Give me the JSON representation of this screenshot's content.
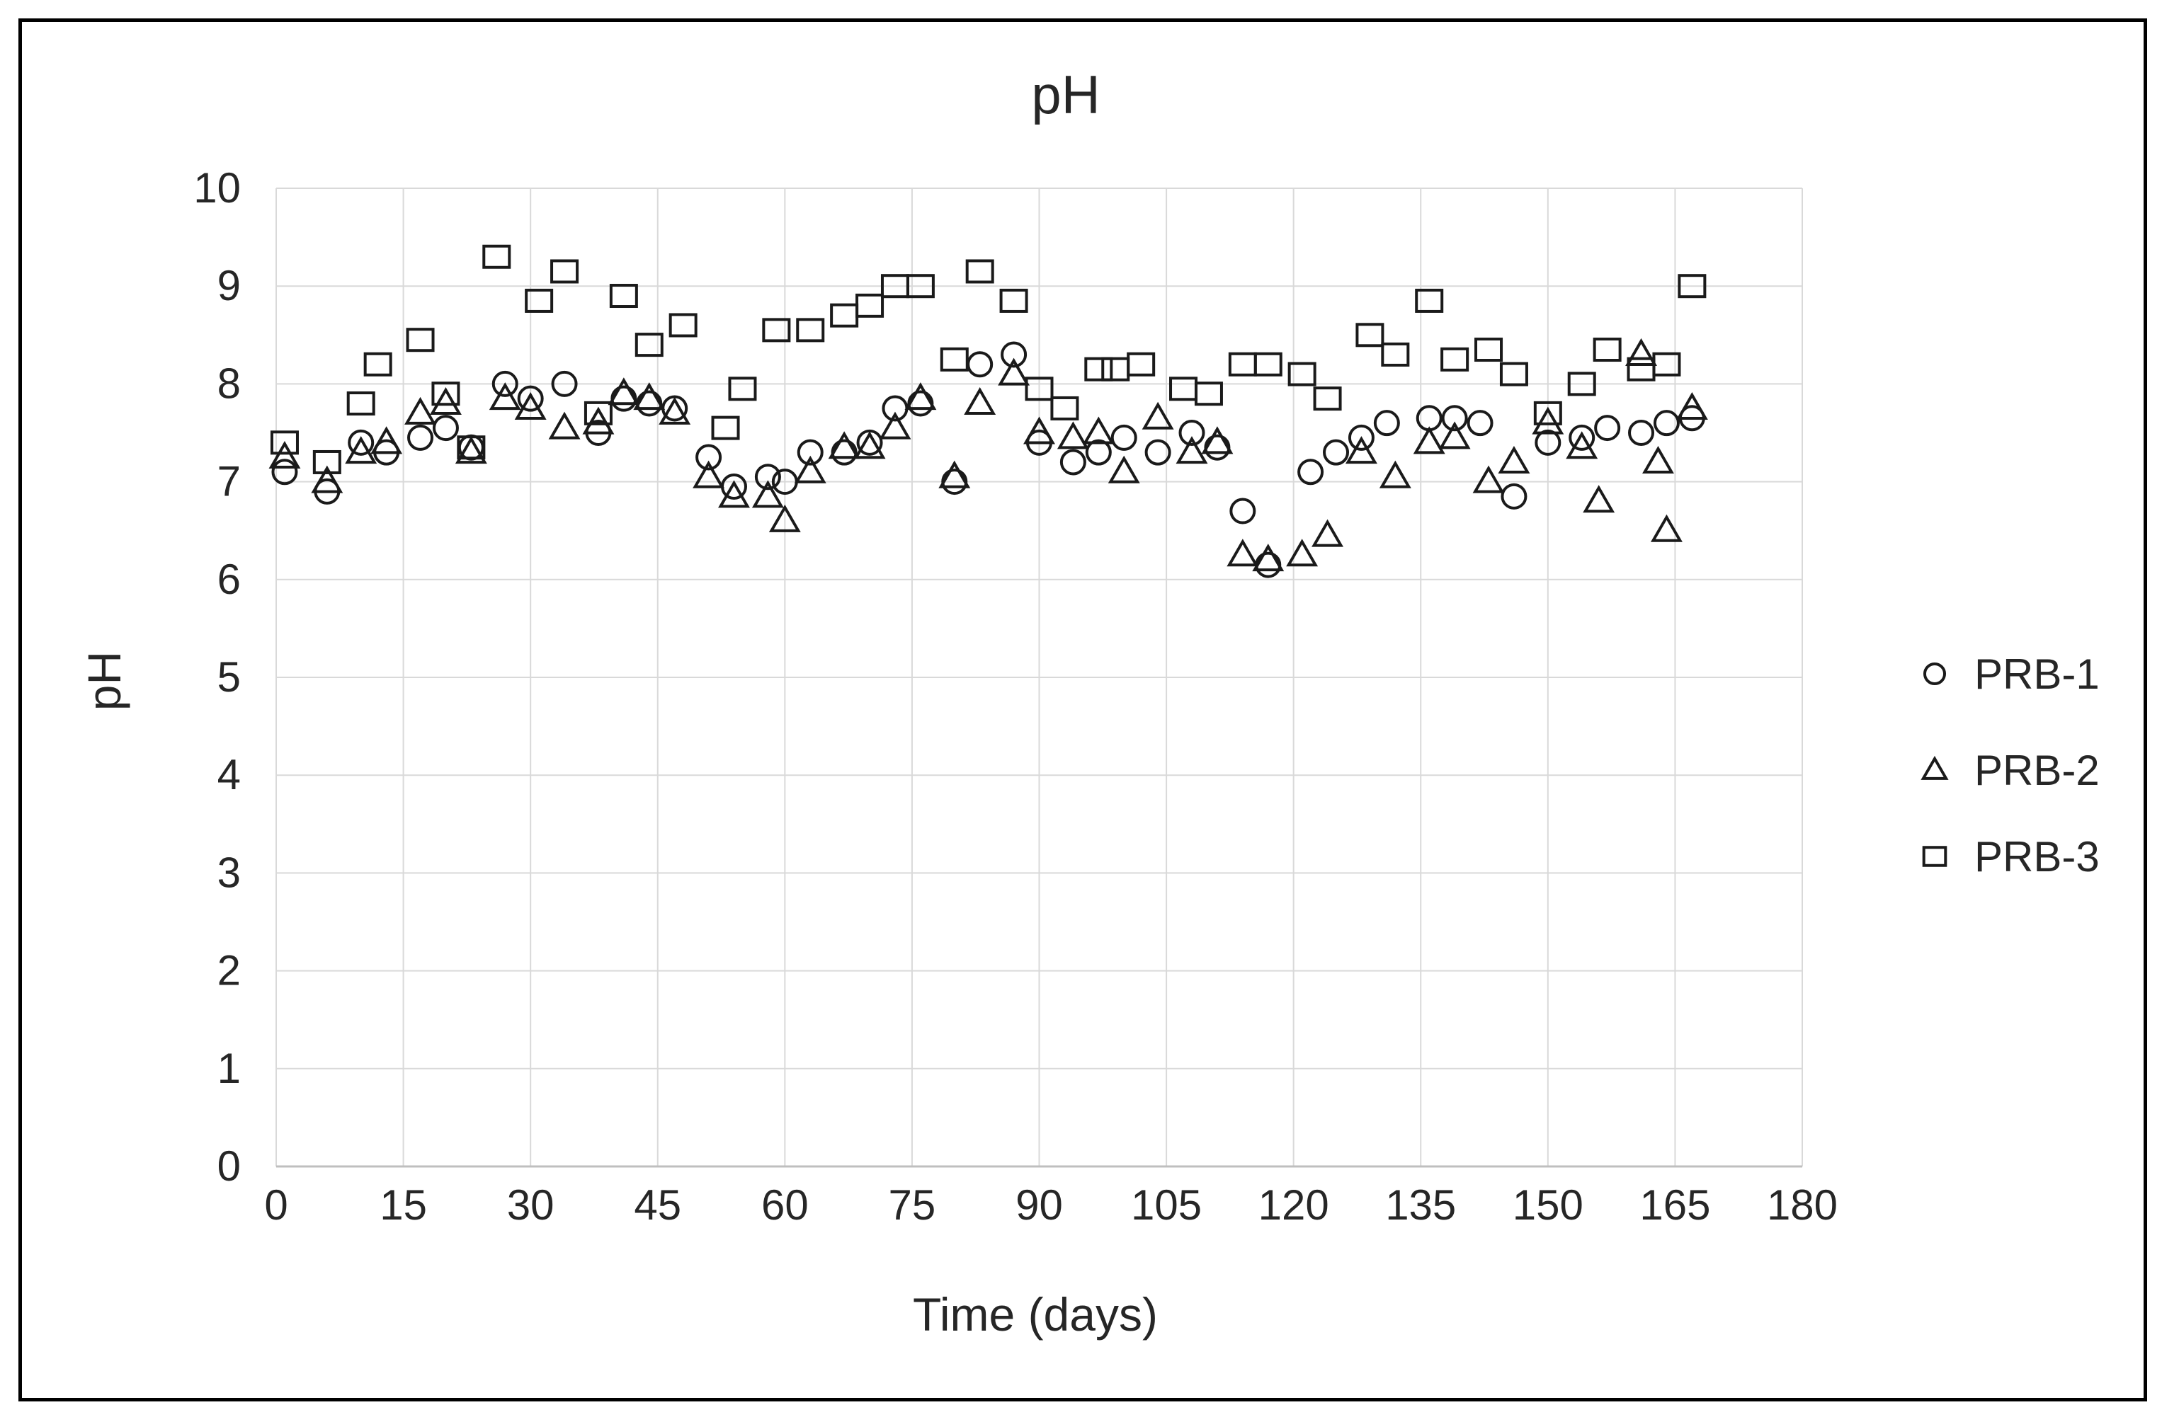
{
  "chart_data": {
    "type": "scatter",
    "title": "pH",
    "xlabel": "Time (days)",
    "ylabel": "pH",
    "xlim": [
      0,
      180
    ],
    "ylim": [
      0,
      10
    ],
    "x_ticks": [
      0,
      15,
      30,
      45,
      60,
      75,
      90,
      105,
      120,
      135,
      150,
      165,
      180
    ],
    "y_ticks": [
      0,
      1,
      2,
      3,
      4,
      5,
      6,
      7,
      8,
      9,
      10
    ],
    "grid": true,
    "legend_position": "right",
    "marker_color": "#1a1a1a",
    "gridline_color": "#d9d9d9",
    "axis_line_color": "#bfbfbf",
    "series": [
      {
        "name": "PRB-1",
        "marker": "circle",
        "points": [
          [
            1,
            7.1
          ],
          [
            6,
            6.9
          ],
          [
            10,
            7.4
          ],
          [
            13,
            7.3
          ],
          [
            17,
            7.45
          ],
          [
            20,
            7.55
          ],
          [
            23,
            7.35
          ],
          [
            27,
            8.0
          ],
          [
            30,
            7.85
          ],
          [
            34,
            8.0
          ],
          [
            38,
            7.5
          ],
          [
            41,
            7.85
          ],
          [
            44,
            7.8
          ],
          [
            47,
            7.75
          ],
          [
            51,
            7.25
          ],
          [
            54,
            6.95
          ],
          [
            58,
            7.05
          ],
          [
            60,
            7.0
          ],
          [
            63,
            7.3
          ],
          [
            67,
            7.3
          ],
          [
            70,
            7.4
          ],
          [
            73,
            7.75
          ],
          [
            76,
            7.8
          ],
          [
            80,
            7.0
          ],
          [
            83,
            8.2
          ],
          [
            87,
            8.3
          ],
          [
            90,
            7.4
          ],
          [
            94,
            7.2
          ],
          [
            97,
            7.3
          ],
          [
            100,
            7.45
          ],
          [
            104,
            7.3
          ],
          [
            108,
            7.5
          ],
          [
            111,
            7.35
          ],
          [
            114,
            6.7
          ],
          [
            117,
            6.15
          ],
          [
            122,
            7.1
          ],
          [
            125,
            7.3
          ],
          [
            128,
            7.45
          ],
          [
            131,
            7.6
          ],
          [
            136,
            7.65
          ],
          [
            139,
            7.65
          ],
          [
            142,
            7.6
          ],
          [
            146,
            6.85
          ],
          [
            150,
            7.4
          ],
          [
            154,
            7.45
          ],
          [
            157,
            7.55
          ],
          [
            161,
            7.5
          ],
          [
            164,
            7.6
          ],
          [
            167,
            7.65
          ]
        ]
      },
      {
        "name": "PRB-2",
        "marker": "triangle",
        "points": [
          [
            1,
            7.25
          ],
          [
            6,
            7.0
          ],
          [
            10,
            7.3
          ],
          [
            13,
            7.4
          ],
          [
            17,
            7.7
          ],
          [
            20,
            7.8
          ],
          [
            23,
            7.3
          ],
          [
            27,
            7.85
          ],
          [
            30,
            7.75
          ],
          [
            34,
            7.55
          ],
          [
            38,
            7.6
          ],
          [
            41,
            7.9
          ],
          [
            44,
            7.85
          ],
          [
            47,
            7.7
          ],
          [
            51,
            7.05
          ],
          [
            54,
            6.85
          ],
          [
            58,
            6.85
          ],
          [
            60,
            6.6
          ],
          [
            63,
            7.1
          ],
          [
            67,
            7.35
          ],
          [
            70,
            7.35
          ],
          [
            73,
            7.55
          ],
          [
            76,
            7.85
          ],
          [
            80,
            7.05
          ],
          [
            83,
            7.8
          ],
          [
            87,
            8.1
          ],
          [
            90,
            7.5
          ],
          [
            94,
            7.45
          ],
          [
            97,
            7.5
          ],
          [
            100,
            7.1
          ],
          [
            104,
            7.65
          ],
          [
            108,
            7.3
          ],
          [
            111,
            7.4
          ],
          [
            114,
            6.25
          ],
          [
            117,
            6.2
          ],
          [
            121,
            6.25
          ],
          [
            124,
            6.45
          ],
          [
            128,
            7.3
          ],
          [
            132,
            7.05
          ],
          [
            136,
            7.4
          ],
          [
            139,
            7.45
          ],
          [
            143,
            7.0
          ],
          [
            146,
            7.2
          ],
          [
            150,
            7.6
          ],
          [
            154,
            7.35
          ],
          [
            156,
            6.8
          ],
          [
            161,
            8.3
          ],
          [
            163,
            7.2
          ],
          [
            164,
            6.5
          ],
          [
            167,
            7.75
          ]
        ]
      },
      {
        "name": "PRB-3",
        "marker": "square",
        "points": [
          [
            1,
            7.4
          ],
          [
            6,
            7.2
          ],
          [
            10,
            7.8
          ],
          [
            12,
            8.2
          ],
          [
            17,
            8.45
          ],
          [
            20,
            7.9
          ],
          [
            23,
            7.35
          ],
          [
            26,
            9.3
          ],
          [
            31,
            8.85
          ],
          [
            34,
            9.15
          ],
          [
            38,
            7.7
          ],
          [
            41,
            8.9
          ],
          [
            44,
            8.4
          ],
          [
            48,
            8.6
          ],
          [
            53,
            7.55
          ],
          [
            55,
            7.95
          ],
          [
            59,
            8.55
          ],
          [
            63,
            8.55
          ],
          [
            67,
            8.7
          ],
          [
            70,
            8.8
          ],
          [
            73,
            9.0
          ],
          [
            76,
            9.0
          ],
          [
            80,
            8.25
          ],
          [
            83,
            9.15
          ],
          [
            87,
            8.85
          ],
          [
            90,
            7.95
          ],
          [
            93,
            7.75
          ],
          [
            97,
            8.15
          ],
          [
            99,
            8.15
          ],
          [
            102,
            8.2
          ],
          [
            107,
            7.95
          ],
          [
            110,
            7.9
          ],
          [
            114,
            8.2
          ],
          [
            117,
            8.2
          ],
          [
            121,
            8.1
          ],
          [
            124,
            7.85
          ],
          [
            129,
            8.5
          ],
          [
            132,
            8.3
          ],
          [
            136,
            8.85
          ],
          [
            139,
            8.25
          ],
          [
            143,
            8.35
          ],
          [
            146,
            8.1
          ],
          [
            150,
            7.7
          ],
          [
            154,
            8.0
          ],
          [
            157,
            8.35
          ],
          [
            161,
            8.15
          ],
          [
            164,
            8.2
          ],
          [
            167,
            9.0
          ]
        ]
      }
    ]
  }
}
